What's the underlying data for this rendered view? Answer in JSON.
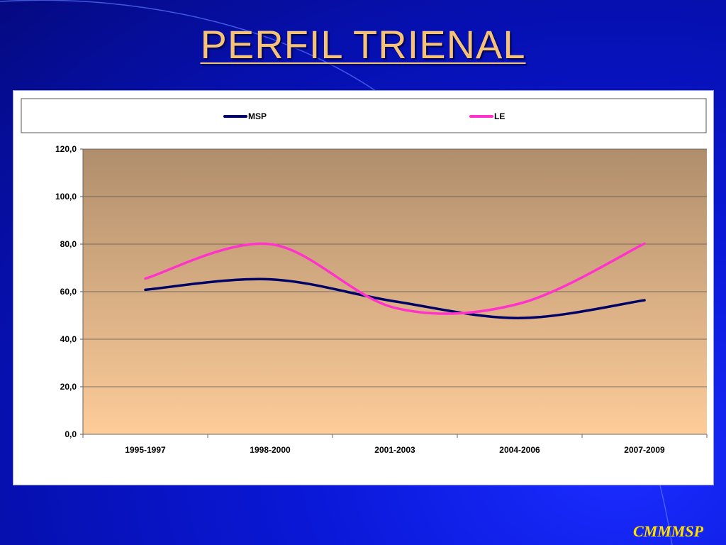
{
  "slide": {
    "title": "PERFIL TRIENAL",
    "footer": "CMMMSP"
  },
  "colors": {
    "background": "#0a18d8",
    "title": "#f5c27a",
    "footer": "#ffe000",
    "plot_top": "#b08e6c",
    "plot_bottom": "#fdcc99"
  },
  "chart_data": {
    "type": "line",
    "categories": [
      "1995-1997",
      "1998-2000",
      "2001-2003",
      "2004-2006",
      "2007-2009"
    ],
    "series": [
      {
        "name": "MSP",
        "color": "#000066",
        "values": [
          60.8,
          65.2,
          55.9,
          48.9,
          56.4
        ]
      },
      {
        "name": "LE",
        "color": "#ff33cc",
        "values": [
          65.5,
          80.0,
          53.2,
          55.0,
          80.2
        ]
      }
    ],
    "ylim": [
      0,
      120
    ],
    "yticks": [
      "0,0",
      "20,0",
      "40,0",
      "60,0",
      "80,0",
      "100,0",
      "120,0"
    ],
    "grid": true,
    "smooth": true,
    "legend": "top"
  }
}
